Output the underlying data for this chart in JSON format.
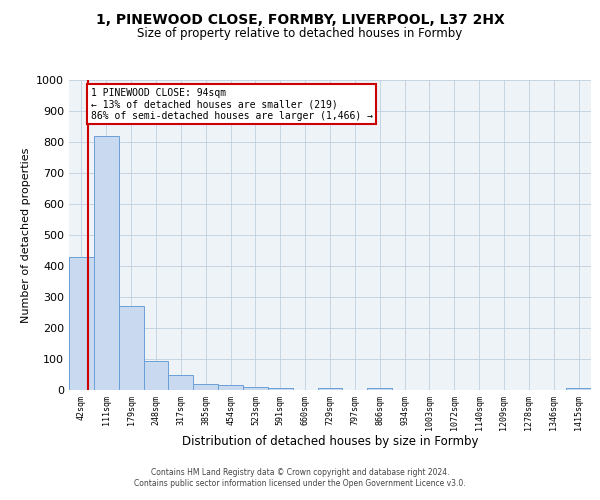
{
  "title_line1": "1, PINEWOOD CLOSE, FORMBY, LIVERPOOL, L37 2HX",
  "title_line2": "Size of property relative to detached houses in Formby",
  "xlabel": "Distribution of detached houses by size in Formby",
  "ylabel": "Number of detached properties",
  "bin_labels": [
    "42sqm",
    "111sqm",
    "179sqm",
    "248sqm",
    "317sqm",
    "385sqm",
    "454sqm",
    "523sqm",
    "591sqm",
    "660sqm",
    "729sqm",
    "797sqm",
    "866sqm",
    "934sqm",
    "1003sqm",
    "1072sqm",
    "1140sqm",
    "1209sqm",
    "1278sqm",
    "1346sqm",
    "1415sqm"
  ],
  "bar_heights": [
    430,
    820,
    270,
    95,
    48,
    20,
    15,
    10,
    8,
    0,
    8,
    0,
    8,
    0,
    0,
    0,
    0,
    0,
    0,
    0,
    8
  ],
  "bar_color": "#c9d9f0",
  "bar_edge_color": "#6a9fd8",
  "subject_sqm": 94,
  "bin_starts": [
    42,
    111,
    179,
    248,
    317,
    385,
    454,
    523,
    591,
    660,
    729,
    797,
    866,
    934,
    1003,
    1072,
    1140,
    1209,
    1278,
    1346,
    1415
  ],
  "annotation_line1": "1 PINEWOOD CLOSE: 94sqm",
  "annotation_line2": "← 13% of detached houses are smaller (219)",
  "annotation_line3": "86% of semi-detached houses are larger (1,466) →",
  "vline_color": "#cc0000",
  "annotation_box_edge_color": "#cc0000",
  "annotation_box_face_color": "#ffffff",
  "ylim": [
    0,
    1000
  ],
  "yticks": [
    0,
    100,
    200,
    300,
    400,
    500,
    600,
    700,
    800,
    900,
    1000
  ],
  "grid_color": "#c0d0e0",
  "background_color": "#eef3f8",
  "footer_line1": "Contains HM Land Registry data © Crown copyright and database right 2024.",
  "footer_line2": "Contains public sector information licensed under the Open Government Licence v3.0."
}
